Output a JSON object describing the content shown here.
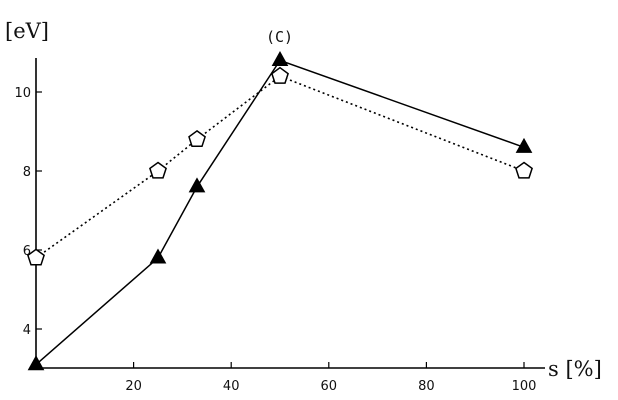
{
  "chart_data": {
    "type": "line",
    "title": "",
    "panel_label": "(C)",
    "ylabel": "[eV]",
    "xlabel": "s [%]",
    "xlim": [
      0,
      100
    ],
    "ylim": [
      3,
      11
    ],
    "xticks": [
      20,
      40,
      60,
      80,
      100
    ],
    "yticks": [
      4,
      6,
      8,
      10
    ],
    "grid": false,
    "legend": "none",
    "series": [
      {
        "style": "solid",
        "marker": "filled-triangle",
        "color": "#000000",
        "x": [
          0,
          25,
          33,
          50,
          100
        ],
        "y": [
          3.1,
          5.8,
          7.6,
          10.8,
          8.6
        ]
      },
      {
        "style": "dotted",
        "marker": "open-pentagon",
        "color": "#000000",
        "x": [
          0,
          25,
          33,
          50,
          100
        ],
        "y": [
          5.8,
          8.0,
          8.8,
          10.4,
          8.0
        ]
      }
    ]
  }
}
